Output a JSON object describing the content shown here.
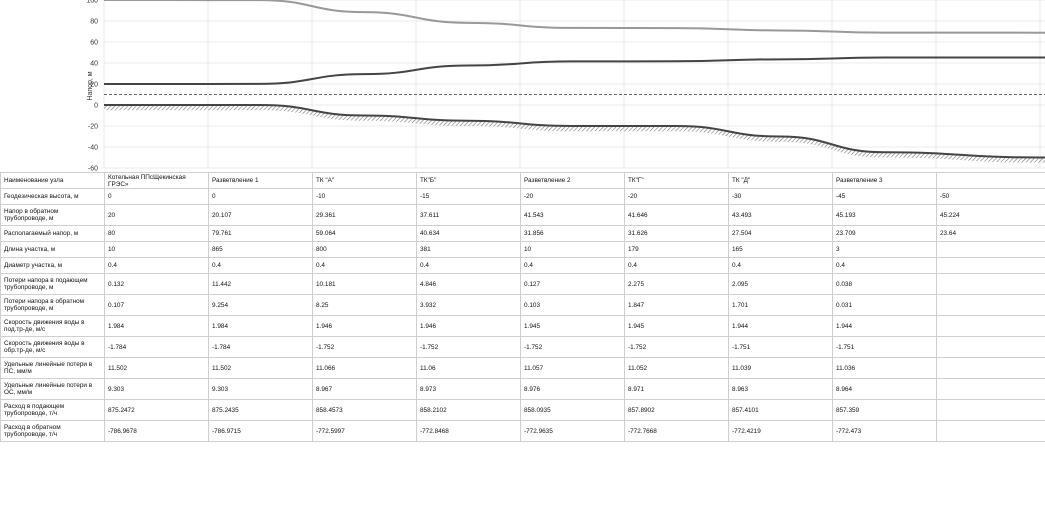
{
  "chart_data": {
    "type": "line",
    "ylabel": "Напор, м",
    "yticks": [
      "100",
      "80",
      "60",
      "40",
      "20",
      "0",
      "-20",
      "-40",
      "-60"
    ],
    "ylim": [
      -60,
      100
    ],
    "categories": [
      "Котельная ППсЩекинская ГРЭС»",
      "Разветвление 1",
      "ТК \"А\"",
      "ТК\"Б\"",
      "Разветвление 2",
      "ТК\"Г\"",
      "ТК \"Д\"",
      "Разветвление 3",
      ""
    ],
    "series": [
      {
        "values": [
          100,
          99.868,
          88.426,
          78.245,
          73.399,
          73.272,
          70.997,
          68.902,
          68.864
        ],
        "color": "#999999"
      },
      {
        "values": [
          20,
          20.107,
          29.361,
          37.611,
          41.543,
          41.646,
          43.493,
          45.193,
          45.224
        ],
        "color": "#444444"
      },
      {
        "values": [
          0,
          0,
          -10,
          -15,
          -20,
          -20,
          -30,
          -45,
          -50
        ],
        "color": "#444444"
      }
    ],
    "reference_line": {
      "value": 10,
      "style": "dashed"
    },
    "grid": true
  },
  "table": {
    "header_label": "Наименование узла",
    "rows": [
      {
        "label": "Геодезическая высота, м",
        "values": [
          "0",
          "0",
          "-10",
          "-15",
          "-20",
          "-20",
          "-30",
          "-45",
          "-50"
        ],
        "cls": "short"
      },
      {
        "label": "Напор в обратном трубопроводе, м",
        "values": [
          "20",
          "20.107",
          "29.361",
          "37.611",
          "41.543",
          "41.646",
          "43.493",
          "45.193",
          "45.224"
        ],
        "cls": "tall"
      },
      {
        "label": "Располагаемый напор, м",
        "values": [
          "80",
          "79.761",
          "59.064",
          "40.634",
          "31.856",
          "31.626",
          "27.504",
          "23.709",
          "23.64"
        ],
        "cls": "short"
      },
      {
        "label": "Длина участка, м",
        "values": [
          "10",
          "865",
          "800",
          "381",
          "10",
          "179",
          "165",
          "3",
          ""
        ],
        "cls": "short"
      },
      {
        "label": "Диаметр участка, м",
        "values": [
          "0.4",
          "0.4",
          "0.4",
          "0.4",
          "0.4",
          "0.4",
          "0.4",
          "0.4",
          ""
        ],
        "cls": "short"
      },
      {
        "label": "Потери напора в подающем трубопроводе, м",
        "values": [
          "0.132",
          "11.442",
          "10.181",
          "4.846",
          "0.127",
          "2.275",
          "2.095",
          "0.038",
          ""
        ],
        "cls": "tall"
      },
      {
        "label": "Потери напора в обратном трубопроводе, м",
        "values": [
          "0.107",
          "9.254",
          "8.25",
          "3.932",
          "0.103",
          "1.847",
          "1.701",
          "0.031",
          ""
        ],
        "cls": "tall"
      },
      {
        "label": "Скорость движения воды в под.тр-де, м/с",
        "values": [
          "1.984",
          "1.984",
          "1.946",
          "1.946",
          "1.945",
          "1.945",
          "1.944",
          "1.944",
          ""
        ],
        "cls": "tall"
      },
      {
        "label": "Скорость движения воды в обр.тр-де, м/с",
        "values": [
          "-1.784",
          "-1.784",
          "-1.752",
          "-1.752",
          "-1.752",
          "-1.752",
          "-1.751",
          "-1.751",
          ""
        ],
        "cls": "tall"
      },
      {
        "label": "Удельные линейные потери в ПС, мм/м",
        "values": [
          "11.502",
          "11.502",
          "11.066",
          "11.06",
          "11.057",
          "11.052",
          "11.039",
          "11.036",
          ""
        ],
        "cls": "tall"
      },
      {
        "label": "Удельные линейные потери в ОС, мм/м",
        "values": [
          "9.303",
          "9.303",
          "8.967",
          "8.973",
          "8.976",
          "8.971",
          "8.963",
          "8.964",
          ""
        ],
        "cls": "tall"
      },
      {
        "label": "Расход в подающем трубопроводе, т/ч",
        "values": [
          "875.2472",
          "875.2435",
          "858.4573",
          "858.2102",
          "858.0935",
          "857.8902",
          "857.4101",
          "857.359",
          ""
        ],
        "cls": "tall"
      },
      {
        "label": "Расход в обратном трубопроводе, т/ч",
        "values": [
          "-786.9678",
          "-786.9715",
          "-772.5997",
          "-772.8468",
          "-772.9635",
          "-772.7668",
          "-772.4219",
          "-772.473",
          ""
        ],
        "cls": "tall"
      }
    ]
  }
}
